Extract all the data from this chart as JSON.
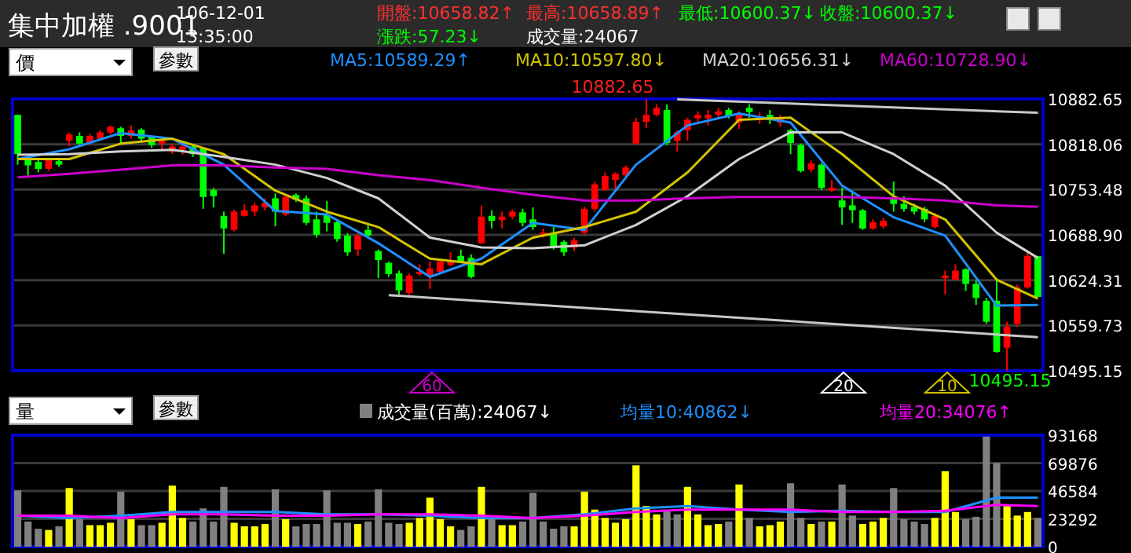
{
  "chart_data": [
    {
      "type": "candlestick",
      "title": "集中加權 .9001",
      "annotations": [
        "106-12-01",
        "13:35:00",
        "開盤:10658.82↑",
        "最高:10658.89↑",
        "最低:10600.37↓",
        "收盤:10600.37↓",
        "漲跌:57.23↓",
        "成交量:24067",
        "價",
        "參數",
        "60",
        "20",
        "10",
        "10882.65",
        "10495.15"
      ],
      "categories": [
        null,
        null,
        null,
        null,
        null,
        null,
        null,
        null,
        null,
        null,
        null,
        null,
        null,
        null,
        null,
        null,
        null,
        null,
        null,
        null,
        null,
        null,
        null,
        null,
        null,
        null,
        null,
        null,
        null,
        null,
        null,
        null,
        null,
        null,
        null,
        null,
        null,
        null,
        null,
        null,
        null,
        null,
        null,
        null,
        null,
        null,
        null,
        null,
        null,
        null,
        null,
        null,
        null,
        null,
        null,
        null,
        null,
        null,
        null,
        null,
        null,
        null,
        null,
        null,
        null,
        null,
        null,
        null,
        null,
        null,
        null,
        null,
        null,
        null,
        null,
        null,
        null,
        null,
        null,
        null,
        null,
        null,
        null,
        null,
        null,
        null,
        null,
        null,
        null,
        null,
        null,
        null,
        null,
        null,
        null,
        null,
        null,
        null,
        null,
        null
      ],
      "ohlc": [
        [
          10860,
          10860,
          10789,
          10804
        ],
        [
          10797,
          10800,
          10773,
          10788
        ],
        [
          10793,
          10797,
          10778,
          10783
        ],
        [
          10783,
          10798,
          10780,
          10797
        ],
        [
          10794,
          10797,
          10786,
          10789
        ],
        [
          10823,
          10835,
          10815,
          10832
        ],
        [
          10830,
          10835,
          10817,
          10819
        ],
        [
          10820,
          10833,
          10817,
          10830
        ],
        [
          10826,
          10838,
          10823,
          10835
        ],
        [
          10835,
          10845,
          10832,
          10843
        ],
        [
          10841,
          10843,
          10819,
          10830
        ],
        [
          10830,
          10845,
          10826,
          10838
        ],
        [
          10839,
          10841,
          10823,
          10826
        ],
        [
          10829,
          10830,
          10813,
          10817
        ],
        [
          10819,
          10826,
          10810,
          10823
        ],
        [
          10808,
          10819,
          10804,
          10815
        ],
        [
          10810,
          10819,
          10803,
          10815
        ],
        [
          10815,
          10817,
          10800,
          10804
        ],
        [
          10812,
          10813,
          10726,
          10743
        ],
        [
          10753,
          10756,
          10728,
          10744
        ],
        [
          10716,
          10722,
          10662,
          10698
        ],
        [
          10696,
          10725,
          10694,
          10722
        ],
        [
          10716,
          10733,
          10715,
          10724
        ],
        [
          10722,
          10735,
          10716,
          10731
        ],
        [
          10728,
          10741,
          10724,
          10735
        ],
        [
          10741,
          10748,
          10701,
          10722
        ],
        [
          10718,
          10744,
          10716,
          10743
        ],
        [
          10746,
          10748,
          10736,
          10739
        ],
        [
          10741,
          10745,
          10703,
          10706
        ],
        [
          10711,
          10722,
          10685,
          10689
        ],
        [
          10718,
          10737,
          10694,
          10706
        ],
        [
          10707,
          10711,
          10679,
          10683
        ],
        [
          10688,
          10691,
          10659,
          10664
        ],
        [
          10668,
          10691,
          10659,
          10688
        ],
        [
          10696,
          10703,
          10685,
          10688
        ],
        [
          10666,
          10668,
          10627,
          10653
        ],
        [
          10649,
          10651,
          10629,
          10633
        ],
        [
          10634,
          10638,
          10603,
          10610
        ],
        [
          10606,
          10634,
          10603,
          10631
        ],
        [
          10633,
          10647,
          10631,
          10636
        ],
        [
          10631,
          10651,
          10612,
          10641
        ],
        [
          10636,
          10653,
          10634,
          10651
        ],
        [
          10646,
          10664,
          10644,
          10651
        ],
        [
          10659,
          10668,
          10649,
          10651
        ],
        [
          10656,
          10661,
          10627,
          10629
        ],
        [
          10677,
          10731,
          10676,
          10715
        ],
        [
          10716,
          10724,
          10698,
          10709
        ],
        [
          10710,
          10722,
          10698,
          10715
        ],
        [
          10715,
          10725,
          10711,
          10722
        ],
        [
          10721,
          10726,
          10701,
          10706
        ],
        [
          10711,
          10728,
          10696,
          10700
        ],
        [
          10688,
          10698,
          10685,
          10692
        ],
        [
          10690,
          10700,
          10668,
          10671
        ],
        [
          10679,
          10681,
          10659,
          10664
        ],
        [
          10671,
          10685,
          10666,
          10681
        ],
        [
          10692,
          10729,
          10688,
          10726
        ],
        [
          10726,
          10765,
          10722,
          10761
        ],
        [
          10753,
          10778,
          10752,
          10773
        ],
        [
          10767,
          10778,
          10752,
          10776
        ],
        [
          10774,
          10788,
          10773,
          10785
        ],
        [
          10819,
          10856,
          10817,
          10850
        ],
        [
          10850,
          10882.65,
          10841,
          10860
        ],
        [
          10860,
          10875,
          10858,
          10870
        ],
        [
          10867,
          10875,
          10817,
          10820
        ],
        [
          10823,
          10838,
          10808,
          10835
        ],
        [
          10838,
          10856,
          10823,
          10853
        ],
        [
          10855,
          10865,
          10847,
          10860
        ],
        [
          10855,
          10867,
          10845,
          10860
        ],
        [
          10860,
          10870,
          10856,
          10865
        ],
        [
          10867,
          10870,
          10855,
          10858
        ],
        [
          10849,
          10865,
          10840,
          10860
        ],
        [
          10870,
          10875,
          10856,
          10864
        ],
        [
          10855,
          10864,
          10847,
          10858
        ],
        [
          10860,
          10867,
          10847,
          10853
        ],
        [
          10849,
          10860,
          10843,
          10856
        ],
        [
          10838,
          10840,
          10804,
          10820
        ],
        [
          10817,
          10819,
          10778,
          10780
        ],
        [
          10782,
          10795,
          10778,
          10791
        ],
        [
          10789,
          10791,
          10753,
          10756
        ],
        [
          10752,
          10767,
          10750,
          10756
        ],
        [
          10738,
          10756,
          10703,
          10728
        ],
        [
          10731,
          10752,
          10706,
          10724
        ],
        [
          10724,
          10726,
          10696,
          10698
        ],
        [
          10698,
          10711,
          10696,
          10707
        ],
        [
          10701,
          10713,
          10698,
          10709
        ],
        [
          10741,
          10765,
          10722,
          10733
        ],
        [
          10733,
          10744,
          10722,
          10726
        ],
        [
          10729,
          10733,
          10718,
          10722
        ],
        [
          10726,
          10729,
          10707,
          10711
        ],
        [
          10700,
          10720,
          10698,
          10716
        ],
        [
          10627,
          10638,
          10604,
          10631
        ],
        [
          10625,
          10647,
          10624,
          10638
        ],
        [
          10640,
          10641,
          10609,
          10619
        ],
        [
          10619,
          10624,
          10589,
          10599
        ],
        [
          10595,
          10599,
          10562,
          10565
        ],
        [
          10595,
          10624,
          10521,
          10522
        ],
        [
          10528,
          10565,
          10495.15,
          10558
        ],
        [
          10562,
          10618,
          10558,
          10614
        ],
        [
          10614,
          10664,
          10612,
          10659
        ],
        [
          10658.82,
          10658.89,
          10600.37,
          10600.37
        ]
      ],
      "colors": [
        "#00ff00",
        "#00ff00",
        "#00ff00",
        "#ff0000",
        "#00ff00",
        "#ff0000",
        "#00ff00",
        "#ff0000",
        "#ff0000",
        "#ff0000",
        "#00ff00",
        "#ff0000",
        "#00ff00",
        "#00ff00",
        "#ff0000",
        "#ff0000",
        "#ff0000",
        "#00ff00",
        "#00ff00",
        "#00ff00",
        "#00ff00",
        "#ff0000",
        "#ff0000",
        "#ff0000",
        "#ff0000",
        "#00ff00",
        "#ff0000",
        "#00ff00",
        "#00ff00",
        "#00ff00",
        "#00ff00",
        "#00ff00",
        "#00ff00",
        "#ff0000",
        "#00ff00",
        "#00ff00",
        "#00ff00",
        "#00ff00",
        "#ff0000",
        "#ff0000",
        "#ff0000",
        "#ff0000",
        "#ff0000",
        "#00ff00",
        "#00ff00",
        "#ff0000",
        "#00ff00",
        "#ff0000",
        "#ff0000",
        "#00ff00",
        "#00ff00",
        "#ff0000",
        "#00ff00",
        "#00ff00",
        "#ff0000",
        "#ff0000",
        "#ff0000",
        "#ff0000",
        "#ff0000",
        "#ff0000",
        "#ff0000",
        "#ff0000",
        "#ff0000",
        "#00ff00",
        "#ff0000",
        "#ff0000",
        "#ff0000",
        "#ff0000",
        "#ff0000",
        "#00ff00",
        "#ff0000",
        "#00ff00",
        "#ff0000",
        "#00ff00",
        "#ff0000",
        "#00ff00",
        "#00ff00",
        "#ff0000",
        "#00ff00",
        "#ff0000",
        "#00ff00",
        "#00ff00",
        "#00ff00",
        "#ff0000",
        "#ff0000",
        "#00ff00",
        "#00ff00",
        "#00ff00",
        "#00ff00",
        "#ff0000",
        "#ff0000",
        "#ff0000",
        "#00ff00",
        "#00ff00",
        "#00ff00",
        "#00ff00",
        "#ff0000",
        "#ff0000",
        "#ff0000",
        "#00ff00"
      ],
      "series": [
        {
          "type": "line",
          "name": "MA5:10589.29↑",
          "color": "#1e90ff",
          "values": [
            10797,
            null,
            null,
            null,
            null,
            10811,
            null,
            null,
            null,
            null,
            10834,
            null,
            null,
            null,
            null,
            10826,
            null,
            null,
            null,
            null,
            10789,
            null,
            null,
            null,
            null,
            10723,
            null,
            null,
            null,
            null,
            10718,
            null,
            null,
            null,
            null,
            10677,
            null,
            null,
            null,
            null,
            10629,
            null,
            null,
            null,
            null,
            10655,
            null,
            null,
            null,
            null,
            10706,
            null,
            null,
            null,
            null,
            10696,
            null,
            null,
            null,
            null,
            10789,
            null,
            null,
            null,
            null,
            10845,
            null,
            null,
            null,
            null,
            10862,
            null,
            null,
            null,
            null,
            10849,
            null,
            null,
            null,
            null,
            10759,
            null,
            null,
            null,
            null,
            10714,
            null,
            null,
            null,
            null,
            10688,
            null,
            null,
            null,
            null,
            10588,
            null,
            null,
            null,
            10589
          ]
        },
        {
          "type": "line",
          "name": "MA10:10597.80↓",
          "color": "#d4c400",
          "values": [
            10797,
            null,
            null,
            null,
            null,
            10797,
            null,
            null,
            null,
            null,
            10819,
            null,
            null,
            null,
            null,
            10826,
            null,
            null,
            null,
            null,
            10804,
            null,
            null,
            null,
            null,
            10752,
            null,
            null,
            null,
            null,
            10722,
            null,
            null,
            null,
            null,
            10700,
            null,
            null,
            null,
            null,
            10655,
            null,
            null,
            null,
            null,
            10647,
            null,
            null,
            null,
            null,
            10685,
            null,
            null,
            null,
            null,
            10700,
            null,
            null,
            null,
            null,
            10722,
            null,
            null,
            null,
            null,
            10778,
            null,
            null,
            null,
            null,
            10853,
            null,
            null,
            null,
            null,
            10856,
            null,
            null,
            null,
            null,
            10804,
            null,
            null,
            null,
            null,
            10744,
            null,
            null,
            null,
            null,
            10711,
            null,
            null,
            null,
            null,
            10625,
            null,
            null,
            null,
            10598
          ]
        },
        {
          "type": "line",
          "name": "MA20:10656.31↓",
          "color": "#d0d0d0",
          "values": [
            10803,
            null,
            null,
            null,
            null,
            10804,
            null,
            null,
            null,
            null,
            10808,
            null,
            null,
            null,
            null,
            10810,
            null,
            null,
            null,
            null,
            10800,
            null,
            null,
            null,
            null,
            10789,
            null,
            null,
            null,
            null,
            10770,
            null,
            null,
            null,
            null,
            10741,
            null,
            null,
            null,
            null,
            10685,
            null,
            null,
            null,
            null,
            10671,
            null,
            null,
            null,
            null,
            10670,
            null,
            null,
            null,
            null,
            10674,
            null,
            null,
            null,
            null,
            10703,
            null,
            null,
            null,
            null,
            10744,
            null,
            null,
            null,
            null,
            10797,
            null,
            null,
            null,
            null,
            10835,
            null,
            null,
            null,
            null,
            10835,
            null,
            null,
            null,
            null,
            10804,
            null,
            null,
            null,
            null,
            10759,
            null,
            null,
            null,
            null,
            10692,
            null,
            null,
            null,
            10656
          ]
        },
        {
          "type": "line",
          "name": "MA60:10728.90↓",
          "color": "#cc00cc",
          "values": [
            10771,
            null,
            null,
            null,
            null,
            10776,
            null,
            null,
            null,
            null,
            10782,
            null,
            null,
            null,
            null,
            10788,
            null,
            null,
            null,
            null,
            10788,
            null,
            null,
            null,
            null,
            10785,
            null,
            null,
            null,
            null,
            10783,
            null,
            null,
            null,
            null,
            10774,
            null,
            null,
            null,
            null,
            10767,
            null,
            null,
            null,
            null,
            10756,
            null,
            null,
            null,
            null,
            10746,
            null,
            null,
            null,
            null,
            10738,
            null,
            null,
            null,
            null,
            10738,
            null,
            null,
            null,
            null,
            10741,
            null,
            null,
            null,
            null,
            10743,
            null,
            null,
            null,
            null,
            10743,
            null,
            null,
            null,
            null,
            10743,
            null,
            null,
            null,
            null,
            10741,
            null,
            null,
            null,
            null,
            10738,
            null,
            null,
            null,
            null,
            10731,
            null,
            null,
            null,
            10729
          ]
        },
        {
          "type": "line",
          "color": "#c8c8c8",
          "values": [
            null,
            null,
            null,
            null,
            null,
            null,
            null,
            null,
            null,
            null,
            null,
            null,
            null,
            null,
            null,
            null,
            null,
            null,
            null,
            null,
            null,
            null,
            null,
            null,
            null,
            null,
            null,
            null,
            null,
            null,
            null,
            null,
            null,
            null,
            null,
            null,
            null,
            null,
            null,
            null,
            null,
            null,
            null,
            null,
            null,
            null,
            null,
            null,
            null,
            null,
            null,
            null,
            null,
            null,
            null,
            null,
            null,
            null,
            null,
            null,
            null,
            null,
            null,
            null,
            10882,
            null,
            null,
            null,
            null,
            null,
            null,
            null,
            null,
            null,
            null,
            null,
            null,
            null,
            null,
            null,
            null,
            null,
            null,
            null,
            null,
            null,
            null,
            null,
            null,
            null,
            null,
            null,
            null,
            null,
            null,
            null,
            null,
            null,
            null,
            10863
          ]
        },
        {
          "type": "line",
          "color": "#c8c8c8",
          "values": [
            null,
            null,
            null,
            null,
            null,
            null,
            null,
            null,
            null,
            null,
            null,
            null,
            null,
            null,
            null,
            null,
            null,
            null,
            null,
            null,
            null,
            null,
            null,
            null,
            null,
            null,
            null,
            null,
            null,
            null,
            null,
            null,
            null,
            null,
            null,
            null,
            10603,
            null,
            null,
            null,
            null,
            null,
            null,
            null,
            null,
            null,
            null,
            null,
            null,
            null,
            null,
            null,
            null,
            null,
            null,
            null,
            null,
            null,
            null,
            null,
            null,
            null,
            null,
            null,
            null,
            null,
            null,
            null,
            null,
            null,
            null,
            null,
            null,
            null,
            null,
            null,
            null,
            null,
            null,
            null,
            null,
            null,
            null,
            null,
            null,
            null,
            null,
            null,
            null,
            null,
            null,
            null,
            null,
            null,
            null,
            null,
            null,
            null,
            null,
            10543
          ]
        }
      ],
      "ylim": [
        10495.15,
        10882.65
      ],
      "yticks": [
        10882.65,
        10818.06,
        10753.48,
        {
          "value": 10688.9,
          "label": "10688.90"
        },
        10624.31,
        10559.73,
        10495.15
      ],
      "grid": "y",
      "legend": "top",
      "tick_labels": "y"
    },
    {
      "type": "bar",
      "annotations": [
        "量",
        "參數"
      ],
      "categories": [
        null,
        null,
        null,
        null,
        null,
        null,
        null,
        null,
        null,
        null,
        null,
        null,
        null,
        null,
        null,
        null,
        null,
        null,
        null,
        null,
        null,
        null,
        null,
        null,
        null,
        null,
        null,
        null,
        null,
        null,
        null,
        null,
        null,
        null,
        null,
        null,
        null,
        null,
        null,
        null,
        null,
        null,
        null,
        null,
        null,
        null,
        null,
        null,
        null,
        null,
        null,
        null,
        null,
        null,
        null,
        null,
        null,
        null,
        null,
        null,
        null,
        null,
        null,
        null,
        null,
        null,
        null,
        null,
        null,
        null,
        null,
        null,
        null,
        null,
        null,
        null,
        null,
        null,
        null,
        null,
        null,
        null,
        null,
        null,
        null,
        null,
        null,
        null,
        null,
        null,
        null,
        null,
        null,
        null,
        null,
        null,
        null,
        null,
        null,
        null
      ],
      "series": [
        {
          "name": "成交量(百萬):24067↓",
          "values": [
            47000,
            21000,
            15000,
            14000,
            17000,
            49000,
            23000,
            18000,
            18000,
            20000,
            46000,
            23000,
            18000,
            18000,
            20000,
            51000,
            24000,
            21000,
            32000,
            21000,
            50000,
            20000,
            17000,
            17000,
            19000,
            48000,
            23000,
            17000,
            19000,
            19000,
            47000,
            20000,
            20000,
            19000,
            21000,
            48000,
            20000,
            19000,
            20000,
            24000,
            41000,
            23000,
            17000,
            14000,
            17000,
            50000,
            23000,
            18000,
            18000,
            21000,
            45000,
            21000,
            15000,
            17000,
            17000,
            46000,
            31000,
            24000,
            20000,
            23000,
            68000,
            34000,
            27000,
            30000,
            27000,
            50000,
            27000,
            18000,
            19000,
            21000,
            52000,
            24000,
            17000,
            18000,
            21000,
            53000,
            24000,
            19000,
            21000,
            21000,
            52000,
            26000,
            19000,
            21000,
            24000,
            49000,
            23000,
            21000,
            19000,
            24000,
            63000,
            29000,
            23000,
            25000,
            92000,
            70000,
            34000,
            26000,
            29000,
            24000
          ],
          "colors": [
            "#808080",
            "#808080",
            "#808080",
            "#ffff00",
            "#808080",
            "#ffff00",
            "#808080",
            "#ffff00",
            "#ffff00",
            "#ffff00",
            "#808080",
            "#ffff00",
            "#808080",
            "#808080",
            "#ffff00",
            "#ffff00",
            "#ffff00",
            "#808080",
            "#808080",
            "#808080",
            "#808080",
            "#ffff00",
            "#ffff00",
            "#ffff00",
            "#ffff00",
            "#808080",
            "#ffff00",
            "#808080",
            "#808080",
            "#808080",
            "#808080",
            "#808080",
            "#808080",
            "#ffff00",
            "#808080",
            "#808080",
            "#808080",
            "#808080",
            "#ffff00",
            "#ffff00",
            "#ffff00",
            "#ffff00",
            "#ffff00",
            "#808080",
            "#808080",
            "#ffff00",
            "#808080",
            "#ffff00",
            "#ffff00",
            "#808080",
            "#808080",
            "#808080",
            "#808080",
            "#808080",
            "#ffff00",
            "#ffff00",
            "#ffff00",
            "#ffff00",
            "#ffff00",
            "#ffff00",
            "#ffff00",
            "#ffff00",
            "#ffff00",
            "#808080",
            "#808080",
            "#ffff00",
            "#ffff00",
            "#ffff00",
            "#ffff00",
            "#808080",
            "#ffff00",
            "#808080",
            "#ffff00",
            "#ffff00",
            "#ffff00",
            "#808080",
            "#808080",
            "#ffff00",
            "#808080",
            "#ffff00",
            "#808080",
            "#808080",
            "#ffff00",
            "#ffff00",
            "#ffff00",
            "#808080",
            "#808080",
            "#808080",
            "#808080",
            "#ffff00",
            "#ffff00",
            "#ffff00",
            "#808080",
            "#808080",
            "#808080",
            "#808080",
            "#ffff00",
            "#ffff00",
            "#ffff00",
            "#808080"
          ]
        },
        {
          "type": "line",
          "name": "均量10:40862↓",
          "color": "#1e90ff",
          "values": [
            26000,
            null,
            null,
            null,
            null,
            24000,
            null,
            null,
            null,
            null,
            26000,
            null,
            null,
            null,
            null,
            29000,
            null,
            null,
            null,
            null,
            29000,
            null,
            null,
            null,
            null,
            29000,
            null,
            null,
            null,
            null,
            27000,
            null,
            null,
            null,
            null,
            27000,
            null,
            null,
            null,
            null,
            26000,
            null,
            null,
            null,
            null,
            24000,
            null,
            null,
            null,
            null,
            24000,
            null,
            null,
            null,
            null,
            27000,
            null,
            null,
            null,
            null,
            32000,
            null,
            null,
            null,
            null,
            34000,
            null,
            null,
            null,
            null,
            31000,
            null,
            null,
            null,
            null,
            29000,
            null,
            null,
            null,
            null,
            30000,
            null,
            null,
            null,
            null,
            29000,
            null,
            null,
            null,
            null,
            29000,
            null,
            null,
            null,
            null,
            41000,
            null,
            null,
            null,
            41000
          ]
        },
        {
          "type": "line",
          "name": "均量20:34076↑",
          "color": "#ff00ff",
          "values": [
            26000,
            null,
            null,
            null,
            null,
            26000,
            null,
            null,
            null,
            null,
            24000,
            null,
            null,
            null,
            null,
            27000,
            null,
            null,
            null,
            null,
            27000,
            null,
            null,
            null,
            null,
            26000,
            null,
            null,
            null,
            null,
            26000,
            null,
            null,
            null,
            null,
            27000,
            null,
            null,
            null,
            null,
            27000,
            null,
            null,
            null,
            null,
            26000,
            null,
            null,
            null,
            null,
            24000,
            null,
            null,
            null,
            null,
            26000,
            null,
            null,
            null,
            null,
            29000,
            null,
            null,
            null,
            null,
            31000,
            null,
            null,
            null,
            null,
            31000,
            null,
            null,
            null,
            null,
            31000,
            null,
            null,
            null,
            null,
            29000,
            null,
            null,
            null,
            null,
            29000,
            null,
            null,
            null,
            null,
            30000,
            null,
            null,
            null,
            null,
            35000,
            null,
            null,
            null,
            34000
          ]
        }
      ],
      "ylim": [
        0,
        93168
      ],
      "yticks": [
        93168,
        69876,
        46584,
        23292,
        0
      ],
      "grid": "y",
      "legend": "top",
      "tick_labels": "y"
    }
  ]
}
